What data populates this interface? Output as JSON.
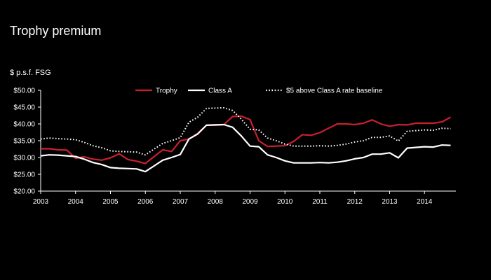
{
  "page": {
    "title": "Trophy premium",
    "unit_label": "$ p.s.f. FSG"
  },
  "chart_data": {
    "type": "line",
    "xlabel": "",
    "ylabel": "$ p.s.f. FSG",
    "xlim": [
      2003.0,
      2014.9
    ],
    "ylim": [
      20,
      50
    ],
    "x_ticks": [
      2003,
      2004,
      2005,
      2006,
      2007,
      2008,
      2009,
      2010,
      2011,
      2012,
      2013,
      2014
    ],
    "x_tick_labels": [
      "2003",
      "2004",
      "2005",
      "2006",
      "2007",
      "2008",
      "2009",
      "2010",
      "2011",
      "2012",
      "2013",
      "2014"
    ],
    "y_ticks": [
      20,
      25,
      30,
      35,
      40,
      45,
      50
    ],
    "y_tick_labels": [
      "$20.00",
      "$25.00",
      "$30.00",
      "$35.00",
      "$40.00",
      "$45.00",
      "$50.00"
    ],
    "grid": false,
    "legend_position": "top",
    "x": [
      2003.0,
      2003.25,
      2003.5,
      2003.75,
      2004.0,
      2004.25,
      2004.5,
      2004.75,
      2005.0,
      2005.25,
      2005.5,
      2005.75,
      2006.0,
      2006.25,
      2006.5,
      2006.75,
      2007.0,
      2007.25,
      2007.5,
      2007.75,
      2008.0,
      2008.25,
      2008.5,
      2008.75,
      2009.0,
      2009.25,
      2009.5,
      2009.75,
      2010.0,
      2010.25,
      2010.5,
      2010.75,
      2011.0,
      2011.25,
      2011.5,
      2011.75,
      2012.0,
      2012.25,
      2012.5,
      2012.75,
      2013.0,
      2013.25,
      2013.5,
      2013.75,
      2014.0,
      2014.25,
      2014.5,
      2014.75
    ],
    "series": [
      {
        "name": "Trophy",
        "color": "#c8202f",
        "style": "solid",
        "values": [
          32.6,
          32.6,
          32.3,
          32.2,
          29.8,
          30.2,
          29.5,
          29.2,
          29.9,
          31.1,
          29.4,
          28.9,
          28.2,
          30.3,
          32.3,
          31.8,
          35.0,
          35.5,
          37.2,
          39.6,
          39.6,
          39.8,
          42.2,
          42.3,
          41.3,
          35.0,
          33.3,
          33.4,
          33.5,
          34.8,
          36.8,
          36.6,
          37.4,
          38.7,
          40.0,
          40.0,
          39.8,
          40.2,
          41.2,
          40.0,
          39.3,
          39.8,
          39.7,
          40.2,
          40.2,
          40.2,
          40.6,
          42.0
        ]
      },
      {
        "name": "Class A",
        "color": "#ffffff",
        "style": "solid",
        "values": [
          30.5,
          30.8,
          30.7,
          30.5,
          30.3,
          29.5,
          28.5,
          27.9,
          27.0,
          26.8,
          26.7,
          26.6,
          25.8,
          27.5,
          29.2,
          30.0,
          30.9,
          35.5,
          37.0,
          39.6,
          39.7,
          39.8,
          39.0,
          36.4,
          33.4,
          33.2,
          30.8,
          30.0,
          29.0,
          28.4,
          28.4,
          28.4,
          28.5,
          28.4,
          28.6,
          29.0,
          29.6,
          30.0,
          31.0,
          31.0,
          31.4,
          29.9,
          32.8,
          33.0,
          33.2,
          33.1,
          33.7,
          33.6
        ]
      },
      {
        "name": "$5 above Class A rate baseline",
        "color": "#ffffff",
        "style": "dotted",
        "values": [
          35.5,
          35.8,
          35.6,
          35.5,
          35.3,
          34.5,
          33.5,
          32.9,
          32.0,
          31.8,
          31.7,
          31.6,
          30.8,
          32.5,
          34.2,
          35.0,
          35.9,
          40.5,
          42.0,
          44.6,
          44.7,
          44.8,
          44.0,
          41.4,
          38.4,
          38.2,
          35.8,
          35.0,
          34.0,
          33.4,
          33.4,
          33.4,
          33.5,
          33.4,
          33.6,
          34.0,
          34.6,
          35.0,
          36.0,
          36.0,
          36.4,
          34.9,
          37.8,
          38.0,
          38.2,
          38.1,
          38.7,
          38.6
        ]
      }
    ]
  }
}
